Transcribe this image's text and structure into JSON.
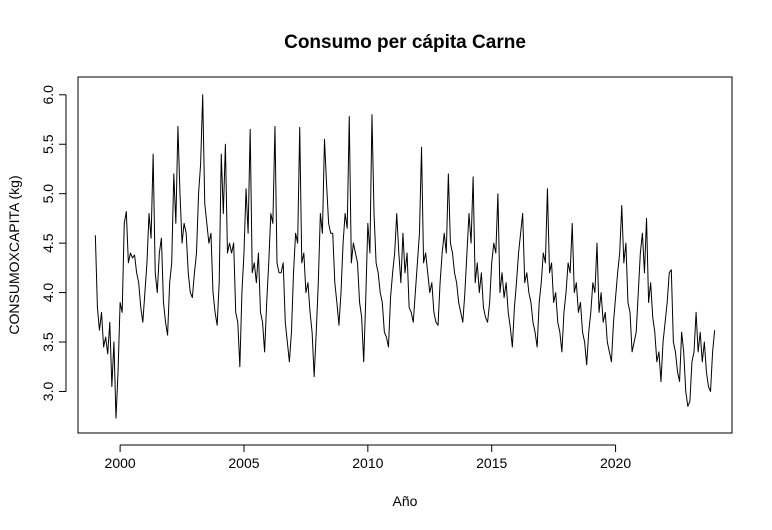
{
  "chart_data": {
    "type": "line",
    "title": "Consumo per cápita Carne",
    "xlabel": "Año",
    "ylabel": "CONSUMOXCAPITA (kg)",
    "xlim": [
      1998.3,
      2024.7
    ],
    "ylim": [
      2.58,
      6.18
    ],
    "x_ticks": [
      2000,
      2005,
      2010,
      2015,
      2020
    ],
    "x_tick_labels": [
      "2000",
      "2005",
      "2010",
      "2015",
      "2020"
    ],
    "y_ticks": [
      3.0,
      3.5,
      4.0,
      4.5,
      5.0,
      5.5,
      6.0
    ],
    "y_tick_labels": [
      "3.0",
      "3.5",
      "4.0",
      "4.5",
      "5.0",
      "5.5",
      "6.0"
    ],
    "grid": false,
    "series": [
      {
        "start": 1999.0,
        "step": 0.0833333,
        "line_color": "#000000",
        "values": [
          4.58,
          3.85,
          3.62,
          3.8,
          3.45,
          3.55,
          3.38,
          3.7,
          3.05,
          3.5,
          2.73,
          3.2,
          3.9,
          3.8,
          4.7,
          4.82,
          4.3,
          4.4,
          4.35,
          4.38,
          4.2,
          4.1,
          3.85,
          3.7,
          4.0,
          4.3,
          4.8,
          4.55,
          5.4,
          4.2,
          4.0,
          4.4,
          4.55,
          3.9,
          3.7,
          3.57,
          4.1,
          4.3,
          5.2,
          4.7,
          5.68,
          5.0,
          4.5,
          4.7,
          4.6,
          4.2,
          4.0,
          3.95,
          4.2,
          4.4,
          5.0,
          5.3,
          6.0,
          4.9,
          4.7,
          4.5,
          4.6,
          4.0,
          3.8,
          3.67,
          4.1,
          5.4,
          4.8,
          5.5,
          4.4,
          4.5,
          4.4,
          4.5,
          3.8,
          3.7,
          3.25,
          4.0,
          4.4,
          5.05,
          4.6,
          5.65,
          4.2,
          4.3,
          4.1,
          4.4,
          3.8,
          3.7,
          3.4,
          3.9,
          4.3,
          4.8,
          4.7,
          5.68,
          4.3,
          4.2,
          4.2,
          4.3,
          3.7,
          3.5,
          3.3,
          3.6,
          4.2,
          4.6,
          4.5,
          5.67,
          4.3,
          4.4,
          4.0,
          4.1,
          3.8,
          3.6,
          3.15,
          3.6,
          4.1,
          4.8,
          4.6,
          5.55,
          5.1,
          4.7,
          4.6,
          4.6,
          4.1,
          3.9,
          3.67,
          4.0,
          4.5,
          4.8,
          4.65,
          5.78,
          4.3,
          4.5,
          4.4,
          4.3,
          3.9,
          3.75,
          3.3,
          3.95,
          4.7,
          4.4,
          5.8,
          4.8,
          4.3,
          4.2,
          4.0,
          3.9,
          3.6,
          3.55,
          3.45,
          3.95,
          4.2,
          4.4,
          4.8,
          4.4,
          4.1,
          4.6,
          4.2,
          4.4,
          3.85,
          3.8,
          3.7,
          4.0,
          4.3,
          4.6,
          5.47,
          4.3,
          4.4,
          4.2,
          4.0,
          4.1,
          3.8,
          3.7,
          3.67,
          4.1,
          4.4,
          4.6,
          4.4,
          5.2,
          4.5,
          4.4,
          4.2,
          4.1,
          3.9,
          3.8,
          3.7,
          4.0,
          4.4,
          4.8,
          4.5,
          5.17,
          4.1,
          4.3,
          4.0,
          4.2,
          3.85,
          3.75,
          3.7,
          3.9,
          4.3,
          4.5,
          4.4,
          5.0,
          4.0,
          4.2,
          3.95,
          4.1,
          3.8,
          3.65,
          3.45,
          3.85,
          4.1,
          4.4,
          4.6,
          4.8,
          4.1,
          4.2,
          4.0,
          3.9,
          3.7,
          3.6,
          3.45,
          3.9,
          4.1,
          4.4,
          4.3,
          5.05,
          4.2,
          4.3,
          3.9,
          4.0,
          3.7,
          3.6,
          3.4,
          3.8,
          4.0,
          4.3,
          4.2,
          4.7,
          4.0,
          4.1,
          3.8,
          3.9,
          3.6,
          3.5,
          3.27,
          3.6,
          3.8,
          4.1,
          4.0,
          4.5,
          3.8,
          4.0,
          3.7,
          3.8,
          3.5,
          3.4,
          3.3,
          3.7,
          3.95,
          4.2,
          4.4,
          4.88,
          4.3,
          4.5,
          3.9,
          3.8,
          3.4,
          3.5,
          3.6,
          4.0,
          4.4,
          4.6,
          4.2,
          4.75,
          3.9,
          4.1,
          3.75,
          3.6,
          3.3,
          3.4,
          3.1,
          3.5,
          3.7,
          3.9,
          4.2,
          4.23,
          3.5,
          3.4,
          3.2,
          3.1,
          3.6,
          3.4,
          3.0,
          2.85,
          2.9,
          3.3,
          3.4,
          3.8,
          3.4,
          3.6,
          3.3,
          3.5,
          3.2,
          3.05,
          3.0,
          3.4,
          3.62
        ]
      }
    ]
  }
}
